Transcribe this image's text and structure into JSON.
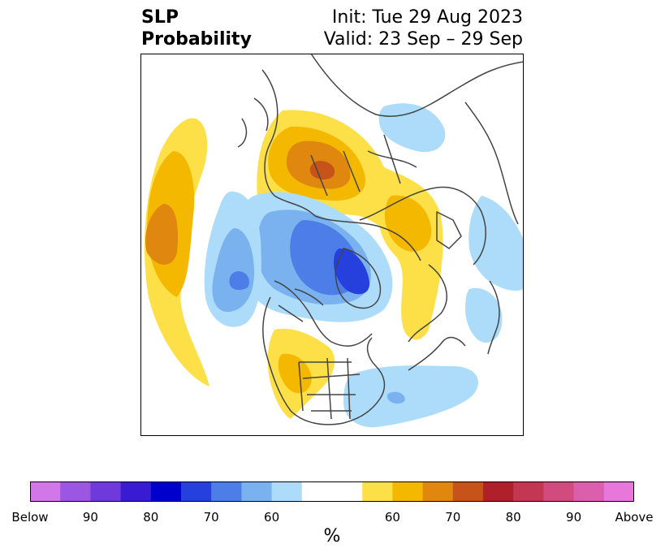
{
  "title": {
    "left_line1": "SLP",
    "left_line2": "Probability",
    "right_line1": "Init: Tue 29 Aug 2023",
    "right_line2": "Valid: 23 Sep – 29 Sep"
  },
  "colorbar": {
    "unit": "%",
    "colors": [
      "#d277e8",
      "#9c57e2",
      "#6f3adb",
      "#3a1bd4",
      "#0000cd",
      "#2540dd",
      "#4d7ee8",
      "#7ab2f0",
      "#acdcfa",
      "#ffffff",
      "#ffffff",
      "#fde047",
      "#f5b800",
      "#e0870f",
      "#c6541a",
      "#b0202a",
      "#c43752",
      "#d14b7e",
      "#dc5fae",
      "#e877dc"
    ],
    "tick_labels": [
      "Below",
      "90",
      "80",
      "70",
      "60",
      "60",
      "70",
      "80",
      "90",
      "Above"
    ]
  },
  "map": {
    "projection": "north-polar-stereographic",
    "palette": {
      "blue1": "#acdcfa",
      "blue2": "#7ab2f0",
      "blue3": "#4d7ee8",
      "blue4": "#2540dd",
      "yel1": "#fde047",
      "yel2": "#f5b800",
      "yel3": "#e0870f",
      "yel4": "#c6541a",
      "coast": "#444444"
    }
  }
}
